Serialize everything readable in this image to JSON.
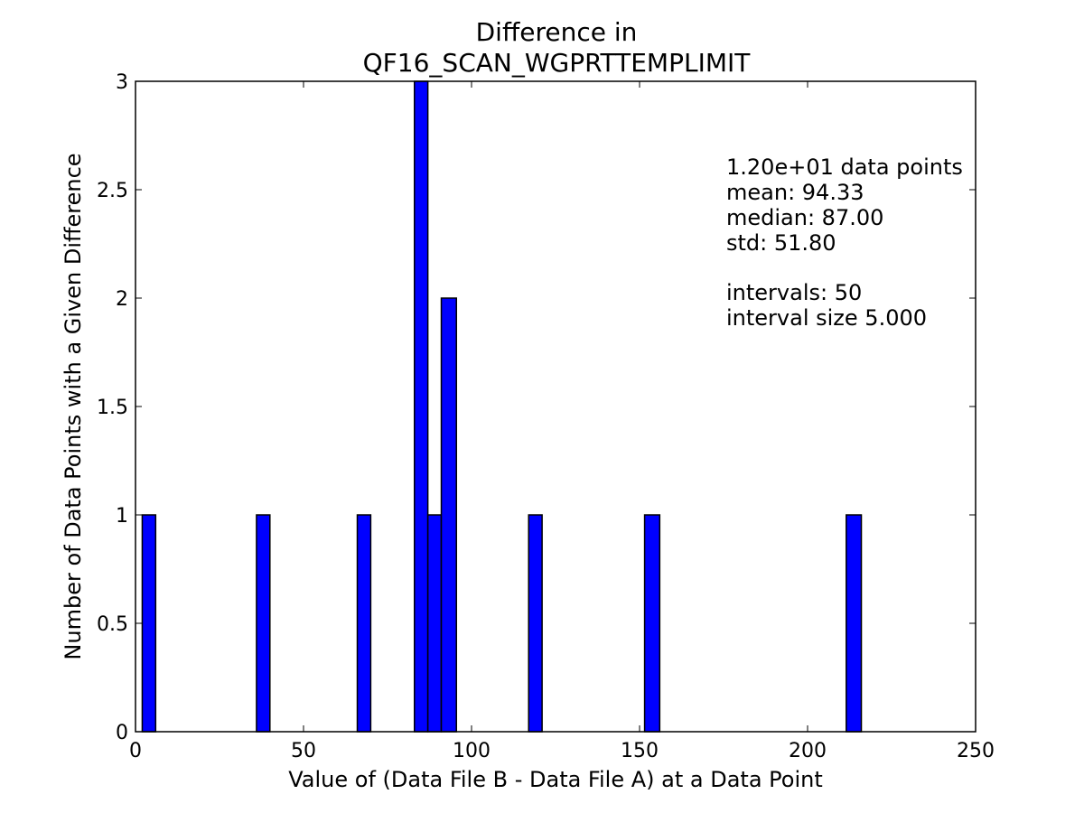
{
  "chart_data": {
    "type": "bar",
    "title": [
      "Difference in",
      "QF16_SCAN_WGPRTTEMPLIMIT"
    ],
    "xlabel": "Value of (Data File B - Data File A) at a Data Point",
    "ylabel": "Number of Data Points with a Given Difference",
    "xlim": [
      0,
      250
    ],
    "ylim": [
      0,
      3
    ],
    "xticks": [
      0,
      50,
      100,
      150,
      200,
      250
    ],
    "xtick_labels": [
      "0",
      "50",
      "100",
      "150",
      "200",
      "250"
    ],
    "yticks": [
      0,
      0.5,
      1,
      1.5,
      2,
      2.5,
      3
    ],
    "ytick_labels": [
      "0",
      "0.5",
      "1",
      "1.5",
      "2",
      "2.5",
      "3"
    ],
    "grid": false,
    "bar_color": "#0000ff",
    "bins": [
      {
        "x0": 2,
        "x1": 6,
        "count": 1
      },
      {
        "x0": 36,
        "x1": 40,
        "count": 1
      },
      {
        "x0": 66,
        "x1": 70,
        "count": 1
      },
      {
        "x0": 83,
        "x1": 87,
        "count": 3
      },
      {
        "x0": 87,
        "x1": 91,
        "count": 1
      },
      {
        "x0": 91,
        "x1": 95.5,
        "count": 2
      },
      {
        "x0": 117,
        "x1": 121,
        "count": 1
      },
      {
        "x0": 151.5,
        "x1": 156,
        "count": 1
      },
      {
        "x0": 211.5,
        "x1": 216,
        "count": 1
      }
    ],
    "stats": {
      "points": "1.20e+01 data points",
      "mean": "mean: 94.33",
      "median": "median: 87.00",
      "std": "std: 51.80",
      "intervals": "intervals: 50",
      "interval_size": "interval size 5.000"
    }
  }
}
